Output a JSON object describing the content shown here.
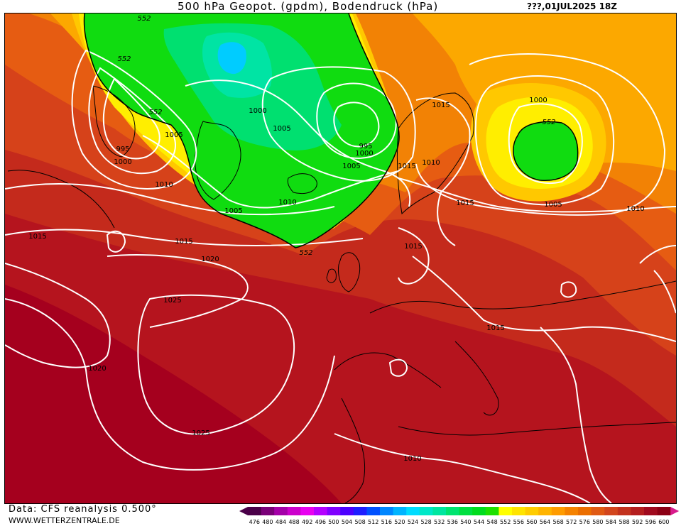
{
  "title": "500 hPa Geopot. (gpdm), Bodendruck (hPa)",
  "run": "???,01JUL2025 18Z",
  "data_source": "Data: CFS reanalysis 0.500°",
  "website": "WWW.WETTERZENTRALE.DE",
  "legend": {
    "values": [
      "476",
      "480",
      "484",
      "488",
      "492",
      "496",
      "500",
      "504",
      "508",
      "512",
      "516",
      "520",
      "524",
      "528",
      "532",
      "536",
      "540",
      "544",
      "548",
      "552",
      "556",
      "560",
      "564",
      "568",
      "572",
      "576",
      "580",
      "584",
      "588",
      "592",
      "596",
      "600"
    ],
    "colors": [
      "#4a0048",
      "#7a0078",
      "#a400a8",
      "#cc00cc",
      "#e800f0",
      "#b400ff",
      "#8000ff",
      "#4c00ff",
      "#1e1eff",
      "#0050ff",
      "#0086ff",
      "#00b4ff",
      "#00dcff",
      "#00e8c8",
      "#00e6a0",
      "#00e470",
      "#00e040",
      "#00dc1e",
      "#1ee000",
      "#ffff00",
      "#ffe400",
      "#ffcc00",
      "#ffb400",
      "#ff9c00",
      "#f58200",
      "#eb6e00",
      "#e05a14",
      "#d2461e",
      "#c3321e",
      "#b41e1e",
      "#a00a1e",
      "#8c0014"
    ]
  },
  "pressure_labels": [
    "1000",
    "1005",
    "995",
    "1000",
    "1005",
    "1010",
    "1015",
    "1015",
    "1020",
    "1025",
    "1020",
    "1025",
    "1000",
    "1005",
    "995",
    "1000",
    "1005",
    "1010",
    "1015",
    "1010",
    "1015",
    "1015",
    "1000",
    "1005",
    "1010",
    "1015",
    "1010"
  ],
  "geopot_labels": [
    "552",
    "552",
    "552",
    "552",
    "552"
  ]
}
